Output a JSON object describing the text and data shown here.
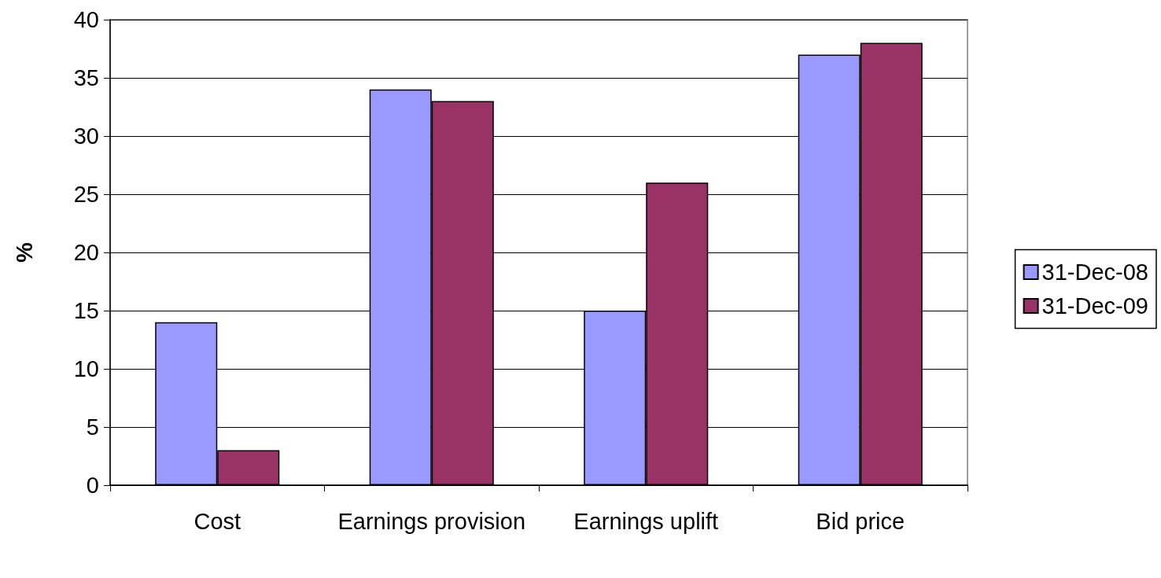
{
  "chart_data": {
    "type": "bar",
    "ylabel": "%",
    "categories": [
      "Cost",
      "Earnings provision",
      "Earnings uplift",
      "Bid price"
    ],
    "series": [
      {
        "name": "31-Dec-08",
        "color": "#9999ff",
        "values": [
          14,
          34,
          15,
          37
        ]
      },
      {
        "name": "31-Dec-09",
        "color": "#993366",
        "values": [
          3,
          33,
          26,
          38
        ]
      }
    ],
    "ylim": [
      0,
      40
    ],
    "yticks": [
      0,
      5,
      10,
      15,
      20,
      25,
      30,
      35,
      40
    ],
    "grid": "y",
    "legend": "right"
  }
}
